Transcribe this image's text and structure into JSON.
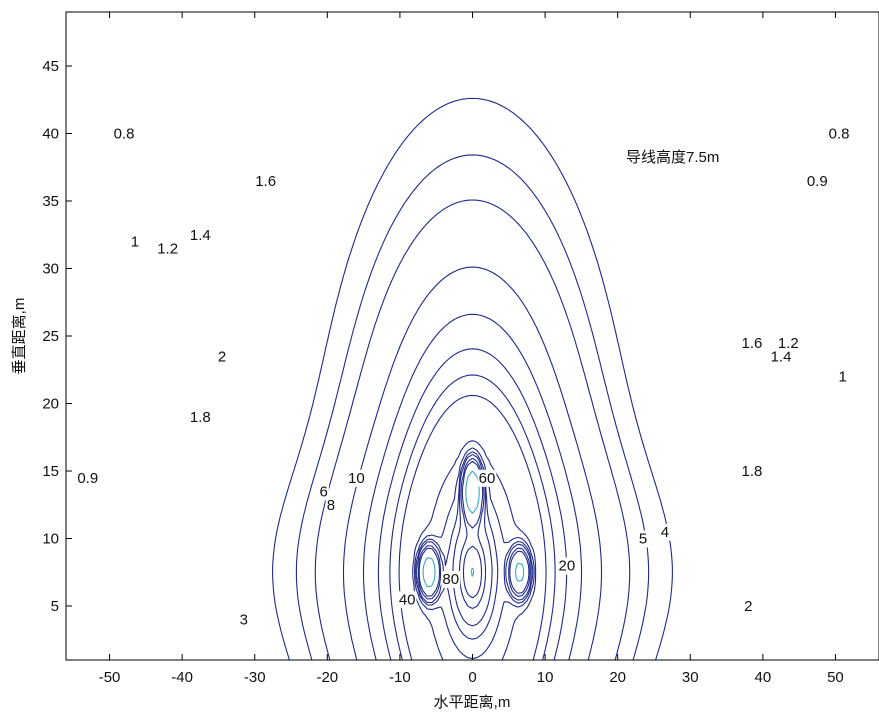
{
  "chart_data": {
    "type": "contour",
    "title": "",
    "xlabel": "水平距离,m",
    "ylabel": "垂直距离,m",
    "xlim": [
      -56,
      56
    ],
    "ylim": [
      1,
      49
    ],
    "xticks": [
      -50,
      -40,
      -30,
      -20,
      -10,
      0,
      10,
      20,
      30,
      40,
      50
    ],
    "yticks": [
      5,
      10,
      15,
      20,
      25,
      30,
      35,
      40,
      45
    ],
    "grid": false,
    "annotation": "导线高度7.5m",
    "source_height_m": 7.5,
    "outer_levels": [
      0.8,
      0.9,
      1,
      1.2,
      1.4,
      1.6,
      1.8,
      2,
      3,
      4,
      5,
      6,
      8,
      10,
      20
    ],
    "inner_levels": [
      40,
      60,
      80
    ],
    "contour_labels": [
      {
        "text": "0.8",
        "x": -48,
        "y": 40
      },
      {
        "text": "1",
        "x": -46.5,
        "y": 32
      },
      {
        "text": "1.2",
        "x": -42,
        "y": 31.5
      },
      {
        "text": "1.4",
        "x": -37.5,
        "y": 32.5
      },
      {
        "text": "1.6",
        "x": -28.5,
        "y": 36.5
      },
      {
        "text": "2",
        "x": -34.5,
        "y": 23.5
      },
      {
        "text": "1.8",
        "x": -37.5,
        "y": 19
      },
      {
        "text": "0.9",
        "x": -53,
        "y": 14.5
      },
      {
        "text": "3",
        "x": -31.5,
        "y": 4
      },
      {
        "text": "6",
        "x": -20.5,
        "y": 13.5
      },
      {
        "text": "8",
        "x": -19.5,
        "y": 12.5
      },
      {
        "text": "10",
        "x": -16,
        "y": 14.5
      },
      {
        "text": "60",
        "x": 2,
        "y": 14.5
      },
      {
        "text": "80",
        "x": -3,
        "y": 7
      },
      {
        "text": "40",
        "x": -9,
        "y": 5.5
      },
      {
        "text": "20",
        "x": 13,
        "y": 8
      },
      {
        "text": "4",
        "x": 26.5,
        "y": 10.5
      },
      {
        "text": "5",
        "x": 23.5,
        "y": 10
      },
      {
        "text": "2",
        "x": 38,
        "y": 5
      },
      {
        "text": "1.8",
        "x": 38.5,
        "y": 15
      },
      {
        "text": "1.6",
        "x": 38.5,
        "y": 24.5
      },
      {
        "text": "1.4",
        "x": 42.5,
        "y": 23.5
      },
      {
        "text": "1.2",
        "x": 43.5,
        "y": 24.5
      },
      {
        "text": "1",
        "x": 51,
        "y": 22
      },
      {
        "text": "0.8",
        "x": 50.5,
        "y": 40
      },
      {
        "text": "0.9",
        "x": 47.5,
        "y": 36.5
      }
    ]
  }
}
